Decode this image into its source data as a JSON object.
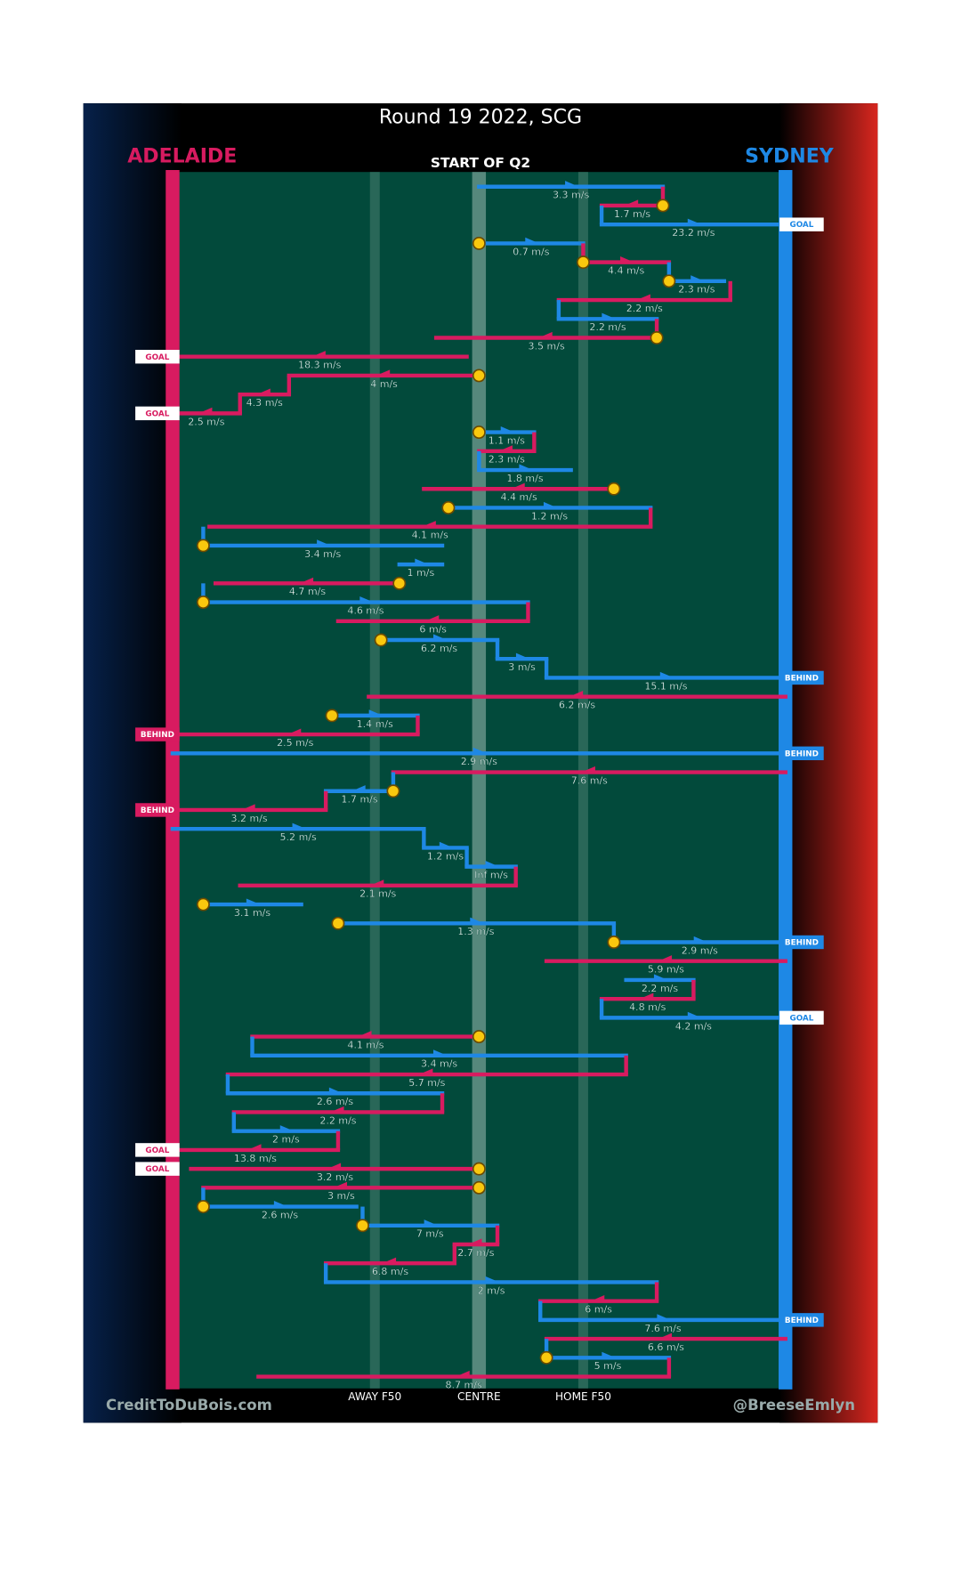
{
  "chart_data": {
    "type": "chain",
    "title": "Round 19 2022, SCG",
    "subtitle": "START OF Q2",
    "teams": [
      {
        "name": "ADELAIDE",
        "color": "#d81b60"
      },
      {
        "name": "SYDNEY",
        "color": "#1e88e5"
      }
    ],
    "xlim": [
      0,
      100
    ],
    "xticks": [
      {
        "value": 33,
        "label": "AWAY F50"
      },
      {
        "value": 50,
        "label": "CENTRE"
      },
      {
        "value": 67,
        "label": "HOME F50"
      }
    ],
    "kicks": [
      {
        "team": "SYDNEY",
        "from": 50,
        "to": 80,
        "speed": "3.3 m/s"
      },
      {
        "team": "ADELAIDE",
        "from": 80,
        "to": 70,
        "speed": "1.7 m/s",
        "turnover": true
      },
      {
        "team": "SYDNEY",
        "from": 70,
        "to": 100,
        "speed": "23.2 m/s",
        "result": "GOAL"
      },
      {
        "team": "SYDNEY",
        "from": 50,
        "to": 67,
        "speed": "0.7 m/s",
        "turnover": true
      },
      {
        "team": "ADELAIDE",
        "from": 67,
        "to": 81,
        "speed": "4.4 m/s",
        "turnover": true
      },
      {
        "team": "SYDNEY",
        "from": 81,
        "to": 90,
        "speed": "2.3 m/s",
        "turnover": true
      },
      {
        "team": "ADELAIDE",
        "from": 91,
        "to": 63,
        "speed": "2.2 m/s"
      },
      {
        "team": "SYDNEY",
        "from": 63,
        "to": 79,
        "speed": "2.2 m/s"
      },
      {
        "team": "ADELAIDE",
        "from": 79,
        "to": 43,
        "speed": "3.5 m/s",
        "turnover": true
      },
      {
        "team": "ADELAIDE",
        "from": 48,
        "to": 0,
        "speed": "18.3 m/s",
        "result": "GOAL"
      },
      {
        "team": "ADELAIDE",
        "from": 50,
        "to": 19,
        "speed": "4 m/s",
        "turnover": true
      },
      {
        "team": "ADELAIDE",
        "from": 19,
        "to": 11,
        "speed": "4.3 m/s"
      },
      {
        "team": "ADELAIDE",
        "from": 11,
        "to": 0,
        "speed": "2.5 m/s",
        "result": "GOAL"
      },
      {
        "team": "SYDNEY",
        "from": 50,
        "to": 59,
        "speed": "1.1 m/s",
        "turnover": true
      },
      {
        "team": "ADELAIDE",
        "from": 59,
        "to": 50,
        "speed": "2.3 m/s"
      },
      {
        "team": "SYDNEY",
        "from": 50,
        "to": 65,
        "speed": "1.8 m/s"
      },
      {
        "team": "ADELAIDE",
        "from": 72,
        "to": 41,
        "speed": "4.4 m/s",
        "turnover": true
      },
      {
        "team": "SYDNEY",
        "from": 45,
        "to": 78,
        "speed": "1.2 m/s",
        "turnover": true
      },
      {
        "team": "ADELAIDE",
        "from": 78,
        "to": 6,
        "speed": "4.1 m/s"
      },
      {
        "team": "SYDNEY",
        "from": 5,
        "to": 44,
        "speed": "3.4 m/s",
        "turnover": true
      },
      {
        "team": "SYDNEY",
        "from": 37,
        "to": 44,
        "speed": "1 m/s"
      },
      {
        "team": "ADELAIDE",
        "from": 37,
        "to": 7,
        "speed": "4.7 m/s",
        "turnover": true
      },
      {
        "team": "SYDNEY",
        "from": 5,
        "to": 58,
        "speed": "4.6 m/s",
        "turnover": true
      },
      {
        "team": "ADELAIDE",
        "from": 58,
        "to": 27,
        "speed": "6 m/s"
      },
      {
        "team": "SYDNEY",
        "from": 34,
        "to": 53,
        "speed": "6.2 m/s",
        "turnover": true
      },
      {
        "team": "SYDNEY",
        "from": 53,
        "to": 61,
        "speed": "3 m/s"
      },
      {
        "team": "SYDNEY",
        "from": 61,
        "to": 100,
        "speed": "15.1 m/s",
        "result": "BEHIND"
      },
      {
        "team": "ADELAIDE",
        "from": 100,
        "to": 32,
        "speed": "6.2 m/s"
      },
      {
        "team": "SYDNEY",
        "from": 26,
        "to": 40,
        "speed": "1.4 m/s",
        "turnover": true
      },
      {
        "team": "ADELAIDE",
        "from": 40,
        "to": 0,
        "speed": "2.5 m/s",
        "result": "BEHIND"
      },
      {
        "team": "SYDNEY",
        "from": 0,
        "to": 100,
        "speed": "2.9 m/s",
        "result": "BEHIND"
      },
      {
        "team": "ADELAIDE",
        "from": 100,
        "to": 36,
        "speed": "7.6 m/s"
      },
      {
        "team": "SYDNEY",
        "from": 36,
        "to": 25,
        "speed": "1.7 m/s",
        "turnover": true
      },
      {
        "team": "ADELAIDE",
        "from": 25,
        "to": 0,
        "speed": "3.2 m/s",
        "result": "BEHIND"
      },
      {
        "team": "SYDNEY",
        "from": 0,
        "to": 41,
        "speed": "5.2 m/s"
      },
      {
        "team": "SYDNEY",
        "from": 41,
        "to": 48,
        "speed": "1.2 m/s"
      },
      {
        "team": "SYDNEY",
        "from": 48,
        "to": 56,
        "speed": "Inf m/s"
      },
      {
        "team": "ADELAIDE",
        "from": 56,
        "to": 11,
        "speed": "2.1 m/s"
      },
      {
        "team": "SYDNEY",
        "from": 5,
        "to": 21,
        "speed": "3.1 m/s",
        "turnover": true
      },
      {
        "team": "SYDNEY",
        "from": 27,
        "to": 72,
        "speed": "1.3 m/s",
        "turnover": true
      },
      {
        "team": "SYDNEY",
        "from": 72,
        "to": 100,
        "speed": "2.9 m/s",
        "turnover": true,
        "result": "BEHIND"
      },
      {
        "team": "ADELAIDE",
        "from": 100,
        "to": 61,
        "speed": "5.9 m/s"
      },
      {
        "team": "SYDNEY",
        "from": 74,
        "to": 85,
        "speed": "2.2 m/s"
      },
      {
        "team": "ADELAIDE",
        "from": 85,
        "to": 70,
        "speed": "4.8 m/s"
      },
      {
        "team": "SYDNEY",
        "from": 70,
        "to": 100,
        "speed": "4.2 m/s",
        "result": "GOAL"
      },
      {
        "team": "ADELAIDE",
        "from": 50,
        "to": 13,
        "speed": "4.1 m/s",
        "turnover": true
      },
      {
        "team": "SYDNEY",
        "from": 13,
        "to": 74,
        "speed": "3.4 m/s"
      },
      {
        "team": "ADELAIDE",
        "from": 74,
        "to": 9,
        "speed": "5.7 m/s"
      },
      {
        "team": "SYDNEY",
        "from": 9,
        "to": 44,
        "speed": "2.6 m/s"
      },
      {
        "team": "ADELAIDE",
        "from": 44,
        "to": 10,
        "speed": "2.2 m/s"
      },
      {
        "team": "SYDNEY",
        "from": 10,
        "to": 27,
        "speed": "2 m/s"
      },
      {
        "team": "ADELAIDE",
        "from": 27,
        "to": 0,
        "speed": "13.8 m/s",
        "result": "GOAL"
      },
      {
        "team": "ADELAIDE",
        "from": 50,
        "to": 3,
        "speed": "3.2 m/s",
        "turnover": true,
        "result": "GOAL"
      },
      {
        "team": "ADELAIDE",
        "from": 50,
        "to": 5,
        "speed": "3 m/s",
        "turnover": true
      },
      {
        "team": "SYDNEY",
        "from": 5,
        "to": 30,
        "speed": "2.6 m/s",
        "turnover": true
      },
      {
        "team": "SYDNEY",
        "from": 31,
        "to": 53,
        "speed": "7 m/s",
        "turnover": true
      },
      {
        "team": "ADELAIDE",
        "from": 53,
        "to": 46,
        "speed": "2.7 m/s"
      },
      {
        "team": "ADELAIDE",
        "from": 46,
        "to": 25,
        "speed": "6.8 m/s"
      },
      {
        "team": "SYDNEY",
        "from": 25,
        "to": 79,
        "speed": "2 m/s"
      },
      {
        "team": "ADELAIDE",
        "from": 79,
        "to": 60,
        "speed": "6 m/s"
      },
      {
        "team": "SYDNEY",
        "from": 60,
        "to": 100,
        "speed": "7.6 m/s",
        "result": "BEHIND"
      },
      {
        "team": "ADELAIDE",
        "from": 100,
        "to": 61,
        "speed": "6.6 m/s"
      },
      {
        "team": "SYDNEY",
        "from": 61,
        "to": 81,
        "speed": "5 m/s",
        "turnover": true
      },
      {
        "team": "ADELAIDE",
        "from": 81,
        "to": 14,
        "speed": "8.7 m/s"
      }
    ]
  },
  "footer": {
    "left": "CreditToDuBois.com",
    "right": "@BreeseEmlyn"
  }
}
